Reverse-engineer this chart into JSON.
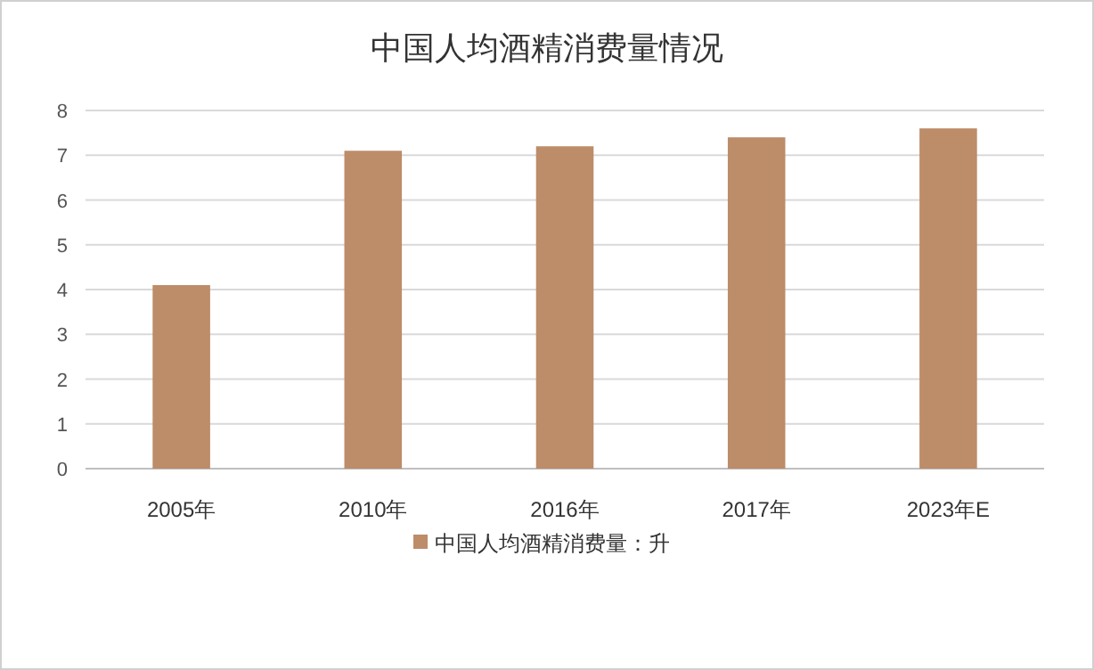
{
  "chart_data": {
    "type": "bar",
    "title": "中国人均酒精消费量情况",
    "categories": [
      "2005年",
      "2010年",
      "2016年",
      "2017年",
      "2023年E"
    ],
    "series": [
      {
        "name": "中国人均酒精消费量：升",
        "color": "#bd8c69",
        "values": [
          4.1,
          7.1,
          7.2,
          7.4,
          7.6
        ]
      }
    ],
    "ylim": [
      0,
      8
    ],
    "yticks": [
      0,
      1,
      2,
      3,
      4,
      5,
      6,
      7,
      8
    ],
    "grid": "y",
    "legend": "bottom"
  }
}
